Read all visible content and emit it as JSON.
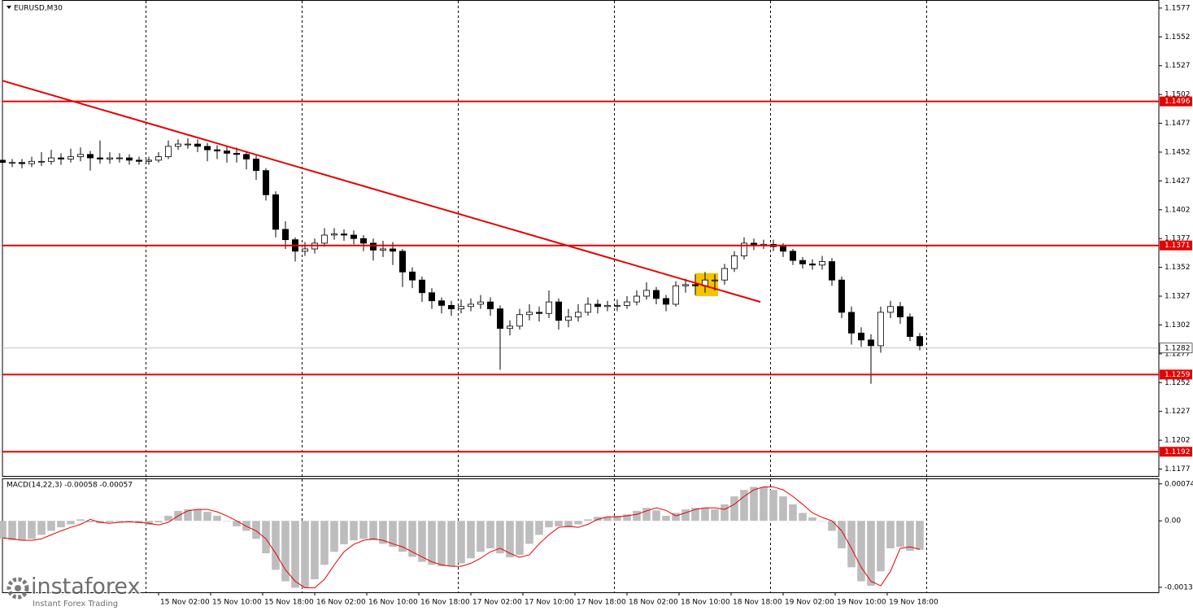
{
  "chart_data": {
    "type": "candlestick",
    "title": "EURUSD,M30",
    "x": [
      0,
      3,
      6,
      9,
      12,
      15,
      18,
      21,
      24,
      27,
      30,
      33,
      36,
      39,
      42,
      45,
      48,
      51,
      54,
      57,
      60,
      63,
      66,
      69,
      72,
      75,
      78,
      81,
      84,
      87,
      90,
      93,
      96,
      99,
      102,
      105,
      108,
      111,
      114,
      117,
      120,
      123,
      126,
      129,
      132,
      135,
      138,
      141,
      144,
      147,
      150,
      153,
      156,
      159,
      162,
      165,
      168,
      171,
      174,
      177,
      180,
      183,
      186,
      189,
      192,
      195,
      198,
      201,
      204,
      207,
      210,
      213,
      216,
      219,
      222,
      225,
      228,
      231,
      234,
      237,
      240,
      243,
      246,
      249,
      252,
      255,
      258,
      261,
      264,
      267,
      270,
      273,
      276,
      279,
      282
    ],
    "open": [
      1.1445,
      1.1443,
      1.1443,
      1.1442,
      1.1444,
      1.1444,
      1.1447,
      1.1446,
      1.1448,
      1.145,
      1.1447,
      1.1446,
      1.1447,
      1.1447,
      1.1445,
      1.1444,
      1.1445,
      1.1448,
      1.1457,
      1.1459,
      1.1459,
      1.1457,
      1.1454,
      1.1453,
      1.1451,
      1.145,
      1.1446,
      1.1436,
      1.1415,
      1.1385,
      1.1376,
      1.1366,
      1.1368,
      1.1373,
      1.138,
      1.1381,
      1.138,
      1.1377,
      1.1373,
      1.1367,
      1.1368,
      1.1366,
      1.1348,
      1.1341,
      1.133,
      1.1323,
      1.1319,
      1.1316,
      1.1318,
      1.132,
      1.1322,
      1.1316,
      1.1299,
      1.1301,
      1.1311,
      1.1313,
      1.1312,
      1.1322,
      1.1306,
      1.1309,
      1.1313,
      1.132,
      1.1318,
      1.1319,
      1.1319,
      1.1322,
      1.1327,
      1.1332,
      1.1325,
      1.132,
      1.1336,
      1.1337,
      1.1336,
      1.1341,
      1.1341,
      1.1351,
      1.1362,
      1.1373,
      1.1371,
      1.1372,
      1.137,
      1.1366,
      1.1358,
      1.1355,
      1.1354,
      1.1357,
      1.1341,
      1.1313,
      1.1295,
      1.1289,
      1.1284,
      1.1313,
      1.1318,
      1.1309,
      1.1292
    ],
    "high": [
      1.1448,
      1.1446,
      1.1446,
      1.1448,
      1.1452,
      1.1454,
      1.1451,
      1.1455,
      1.1456,
      1.1453,
      1.1462,
      1.1452,
      1.1451,
      1.145,
      1.1448,
      1.1448,
      1.1452,
      1.1462,
      1.1463,
      1.1464,
      1.1463,
      1.146,
      1.1458,
      1.1457,
      1.1456,
      1.1453,
      1.1449,
      1.1438,
      1.1418,
      1.1392,
      1.1378,
      1.1374,
      1.1377,
      1.1386,
      1.1386,
      1.1385,
      1.1384,
      1.138,
      1.1377,
      1.1375,
      1.1374,
      1.1368,
      1.1352,
      1.1344,
      1.1334,
      1.1326,
      1.1323,
      1.1324,
      1.1325,
      1.1328,
      1.1326,
      1.1319,
      1.1306,
      1.1316,
      1.132,
      1.1318,
      1.1332,
      1.1325,
      1.1316,
      1.132,
      1.1326,
      1.1324,
      1.1323,
      1.1324,
      1.1327,
      1.1332,
      1.1339,
      1.1335,
      1.1328,
      1.134,
      1.1342,
      1.1346,
      1.1348,
      1.1346,
      1.1355,
      1.1366,
      1.1378,
      1.1377,
      1.1376,
      1.1376,
      1.1373,
      1.1368,
      1.1361,
      1.1359,
      1.1362,
      1.136,
      1.1344,
      1.1318,
      1.13,
      1.1294,
      1.1318,
      1.1323,
      1.1322,
      1.1312,
      1.1295
    ],
    "low": [
      1.144,
      1.1439,
      1.1438,
      1.1439,
      1.144,
      1.1441,
      1.1441,
      1.1443,
      1.1444,
      1.1436,
      1.1442,
      1.1442,
      1.1443,
      1.1441,
      1.1441,
      1.1441,
      1.1443,
      1.1446,
      1.1454,
      1.1455,
      1.1452,
      1.1444,
      1.1446,
      1.1443,
      1.1443,
      1.1437,
      1.1428,
      1.141,
      1.1378,
      1.1368,
      1.1357,
      1.1362,
      1.1364,
      1.137,
      1.1376,
      1.1375,
      1.1372,
      1.1366,
      1.1358,
      1.1361,
      1.1354,
      1.1335,
      1.1334,
      1.1322,
      1.1316,
      1.1312,
      1.131,
      1.1312,
      1.1314,
      1.1316,
      1.131,
      1.1263,
      1.1293,
      1.1298,
      1.1306,
      1.1305,
      1.1308,
      1.1298,
      1.13,
      1.1305,
      1.131,
      1.1312,
      1.1314,
      1.1314,
      1.1316,
      1.1319,
      1.1324,
      1.132,
      1.1314,
      1.1318,
      1.133,
      1.1328,
      1.133,
      1.1332,
      1.1337,
      1.1348,
      1.1359,
      1.1367,
      1.1368,
      1.1366,
      1.1361,
      1.1354,
      1.1351,
      1.135,
      1.135,
      1.1336,
      1.1308,
      1.1285,
      1.1283,
      1.1251,
      1.1278,
      1.1308,
      1.1303,
      1.1288,
      1.128
    ],
    "close": [
      1.1443,
      1.1443,
      1.1442,
      1.1444,
      1.1444,
      1.1447,
      1.1446,
      1.1448,
      1.145,
      1.1447,
      1.1446,
      1.1447,
      1.1447,
      1.1445,
      1.1444,
      1.1445,
      1.1448,
      1.1457,
      1.1459,
      1.1459,
      1.1457,
      1.1454,
      1.1453,
      1.1451,
      1.145,
      1.1446,
      1.1436,
      1.1415,
      1.1385,
      1.1376,
      1.1366,
      1.1368,
      1.1373,
      1.138,
      1.1381,
      1.138,
      1.1377,
      1.1373,
      1.1367,
      1.1368,
      1.1366,
      1.1348,
      1.1341,
      1.133,
      1.1323,
      1.1319,
      1.1316,
      1.1318,
      1.132,
      1.1322,
      1.1316,
      1.1299,
      1.1301,
      1.1311,
      1.1313,
      1.1312,
      1.1322,
      1.1306,
      1.1309,
      1.1313,
      1.132,
      1.1318,
      1.1319,
      1.1319,
      1.1322,
      1.1327,
      1.1332,
      1.1325,
      1.132,
      1.1336,
      1.1337,
      1.1336,
      1.1341,
      1.1341,
      1.1351,
      1.1362,
      1.1373,
      1.1371,
      1.1372,
      1.137,
      1.1366,
      1.1358,
      1.1355,
      1.1354,
      1.1357,
      1.1341,
      1.1313,
      1.1295,
      1.1289,
      1.1284,
      1.1313,
      1.1318,
      1.1309,
      1.1292,
      1.1284
    ],
    "xlim": [
      0,
      355.5
    ],
    "xticks": [
      {
        "value": 48,
        "label": "15 Nov 02:00"
      },
      {
        "value": 64,
        "label": "15 Nov 10:00"
      },
      {
        "value": 80,
        "label": "15 Nov 18:00"
      },
      {
        "value": 96,
        "label": "16 Nov 02:00"
      },
      {
        "value": 112,
        "label": "16 Nov 10:00"
      },
      {
        "value": 128,
        "label": "16 Nov 18:00"
      },
      {
        "value": 144,
        "label": "17 Nov 02:00"
      },
      {
        "value": 160,
        "label": "17 Nov 10:00"
      },
      {
        "value": 176,
        "label": "17 Nov 18:00"
      },
      {
        "value": 192,
        "label": "18 Nov 02:00"
      },
      {
        "value": 208,
        "label": "18 Nov 10:00"
      },
      {
        "value": 224,
        "label": "18 Nov 18:00"
      },
      {
        "value": 240,
        "label": "19 Nov 02:00"
      },
      {
        "value": 256,
        "label": "19 Nov 10:00"
      },
      {
        "value": 272,
        "label": "19 Nov 18:00"
      }
    ],
    "day_separators": [
      44,
      92,
      140,
      188,
      236,
      284
    ],
    "ylim": [
      1.1171,
      1.1584
    ],
    "yticks": [
      1.1577,
      1.1552,
      1.1527,
      1.1502,
      1.1477,
      1.1452,
      1.1427,
      1.1402,
      1.1377,
      1.1352,
      1.1327,
      1.1302,
      1.1277,
      1.1252,
      1.1227,
      1.1202,
      1.1177
    ],
    "levels": [
      1.1496,
      1.1371,
      1.1259,
      1.1192
    ],
    "level_color": "#e60000",
    "current_price": 1.1282,
    "trendline": {
      "x": [
        0,
        233
      ],
      "y": [
        1.1514,
        1.1322
      ]
    },
    "highlight": {
      "x": [
        213,
        220
      ],
      "y": [
        1.1327,
        1.1347
      ],
      "color": "#f5c400"
    },
    "up_color": "#ffffff",
    "down_color": "#000000",
    "macd": {
      "title": "MACD(14,22,3) -0.00058 -0.00057",
      "histogram": [
        -0.00036,
        -0.00039,
        -0.00039,
        -0.00036,
        -0.00028,
        -0.0002,
        -0.00013,
        -7e-05,
        3e-05,
        -3e-05,
        -5e-05,
        -3e-05,
        -2e-05,
        -3e-05,
        -5e-05,
        -8e-05,
        -3e-05,
        0.0001,
        0.0002,
        0.00023,
        0.00023,
        0.00018,
        0.0001,
        0,
        -0.00011,
        -0.0002,
        -0.00036,
        -0.00065,
        -0.00098,
        -0.00121,
        -0.00134,
        -0.00134,
        -0.00117,
        -0.00088,
        -0.00062,
        -0.00047,
        -0.00039,
        -0.00036,
        -0.00039,
        -0.00046,
        -0.00052,
        -0.00062,
        -0.00072,
        -0.00082,
        -0.00088,
        -0.00091,
        -0.00091,
        -0.00085,
        -0.00075,
        -0.00062,
        -0.00055,
        -0.00065,
        -0.00073,
        -0.00068,
        -0.00046,
        -0.00028,
        -0.00013,
        -0.00011,
        -0.00013,
        -7e-05,
        3e-05,
        8e-05,
        8e-05,
        0.0001,
        0.00013,
        0.0002,
        0.00026,
        0.00021,
        0.0001,
        0.00016,
        0.00023,
        0.00026,
        0.00026,
        0.00023,
        0.00033,
        0.00049,
        0.00062,
        0.00068,
        0.00068,
        0.00062,
        0.00049,
        0.00033,
        0.00016,
        7e-05,
        0,
        -0.0002,
        -0.00055,
        -0.00093,
        -0.00121,
        -0.0013,
        -0.00101,
        -0.00055,
        -0.00052,
        -0.0006,
        -0.00058
      ],
      "signal": [
        -0.00034,
        -0.00036,
        -0.00039,
        -0.00039,
        -0.00036,
        -0.00028,
        -0.0002,
        -0.00013,
        -7e-05,
        3e-05,
        -3e-05,
        -5e-05,
        -3e-05,
        -2e-05,
        -3e-05,
        -5e-05,
        -8e-05,
        -3e-05,
        0.0001,
        0.0002,
        0.00023,
        0.00023,
        0.00018,
        0.0001,
        0,
        -0.00011,
        -0.0002,
        -0.00036,
        -0.00065,
        -0.00098,
        -0.00121,
        -0.00134,
        -0.00134,
        -0.00117,
        -0.00088,
        -0.00062,
        -0.00047,
        -0.00039,
        -0.00036,
        -0.00039,
        -0.00046,
        -0.00052,
        -0.00062,
        -0.00072,
        -0.00082,
        -0.00088,
        -0.00091,
        -0.00091,
        -0.00085,
        -0.00075,
        -0.00062,
        -0.00055,
        -0.00065,
        -0.00073,
        -0.00068,
        -0.00046,
        -0.00028,
        -0.00013,
        -0.00011,
        -0.00013,
        -7e-05,
        3e-05,
        8e-05,
        8e-05,
        0.0001,
        0.00013,
        0.0002,
        0.00026,
        0.00021,
        0.0001,
        0.00016,
        0.00023,
        0.00026,
        0.00026,
        0.00023,
        0.00033,
        0.00049,
        0.00062,
        0.00068,
        0.00068,
        0.00062,
        0.00049,
        0.00033,
        0.00016,
        7e-05,
        0,
        -0.0002,
        -0.00055,
        -0.00093,
        -0.00121,
        -0.0013,
        -0.00101,
        -0.00055,
        -0.00052,
        -0.00057
      ],
      "histogram_color": "#bdbdbd",
      "signal_color": "#e60000",
      "ylim": [
        -0.00143,
        0.00085
      ],
      "yticks": [
        0.00074,
        {
          "value": 0,
          "label": "0.00"
        },
        -0.00133
      ]
    }
  },
  "watermark": {
    "brand": "instaforex",
    "tagline": "Instant Forex Trading"
  }
}
